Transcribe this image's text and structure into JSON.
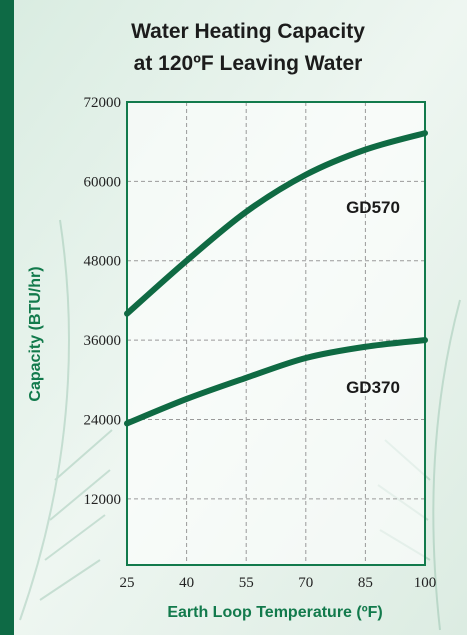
{
  "chart_data": {
    "type": "line",
    "title": [
      "Water Heating Capacity",
      "at 120ºF Leaving Water"
    ],
    "x_label": "Earth Loop Temperature (ºF)",
    "y_label": "Capacity (BTU/hr)",
    "x": [
      25,
      40,
      55,
      70,
      85,
      100
    ],
    "series": [
      {
        "name": "GD570",
        "color": "#0f6a43",
        "values": [
          40000,
          48000,
          55400,
          61000,
          64800,
          67300
        ]
      },
      {
        "name": "GD370",
        "color": "#0f6a43",
        "values": [
          23400,
          27100,
          30300,
          33300,
          35000,
          36000
        ]
      }
    ],
    "xlim": [
      25,
      100
    ],
    "xticks": [
      25,
      40,
      55,
      70,
      85,
      100
    ],
    "ylim": [
      2000,
      72000
    ],
    "yticks": [
      12000,
      24000,
      36000,
      48000,
      60000,
      72000
    ],
    "grid": true
  }
}
